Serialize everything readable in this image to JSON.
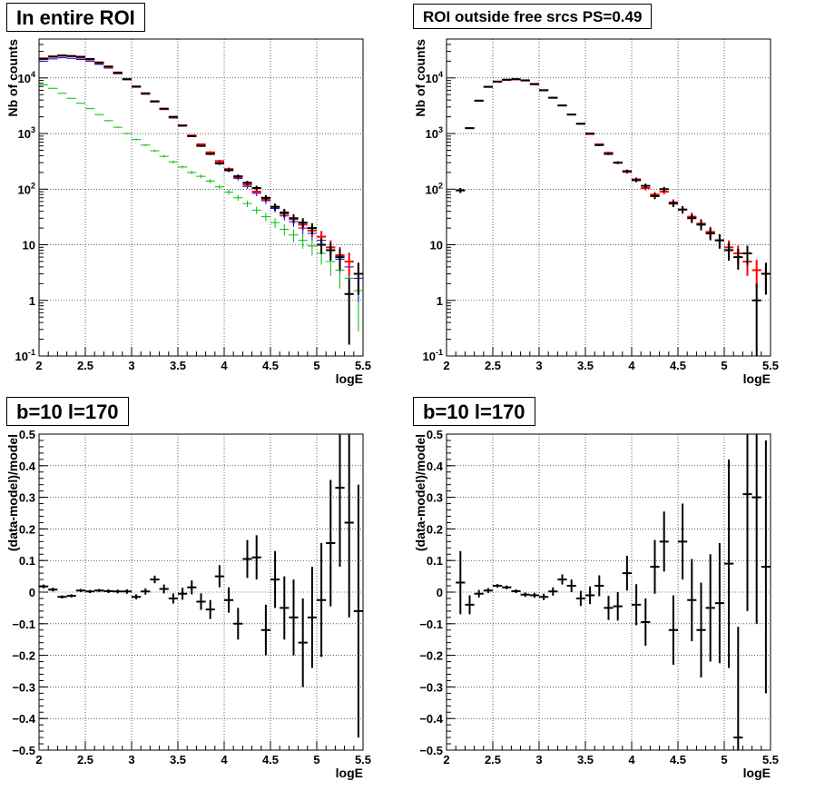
{
  "colors": {
    "data": "#000000",
    "model": "#ff0000",
    "component_blue": "#0000ff",
    "component_green": "#00c000",
    "grid": "#000000"
  },
  "panels": [
    {
      "title": "In entire ROI",
      "chart_data": {
        "type": "scatter",
        "yscale": "log",
        "xlabel": "logE",
        "ylabel": "Nb of counts",
        "xlim": [
          2,
          5.5
        ],
        "ylim": [
          0.1,
          50000
        ],
        "x_ticks": [
          "2",
          "2.5",
          "3",
          "3.5",
          "4",
          "4.5",
          "5",
          "5.5"
        ],
        "y_ticks": [
          "10^-1",
          "1",
          "10",
          "10^2",
          "10^3",
          "10^4"
        ],
        "grid": true,
        "x": [
          2.05,
          2.15,
          2.25,
          2.35,
          2.45,
          2.55,
          2.65,
          2.75,
          2.85,
          2.95,
          3.05,
          3.15,
          3.25,
          3.35,
          3.45,
          3.55,
          3.65,
          3.75,
          3.85,
          3.95,
          4.05,
          4.15,
          4.25,
          4.35,
          4.45,
          4.55,
          4.65,
          4.75,
          4.85,
          4.95,
          5.05,
          5.15,
          5.25,
          5.35,
          5.45
        ],
        "series": [
          {
            "role": "data",
            "values": [
              22000,
              24000,
              25000,
              24800,
              24000,
              22000,
              19000,
              16000,
              12500,
              9500,
              7000,
              5300,
              3800,
              2800,
              2000,
              1400,
              900,
              600,
              430,
              290,
              220,
              170,
              130,
              105,
              70,
              48,
              38,
              30,
              25,
              20,
              10,
              8,
              6,
              1.3,
              3
            ]
          },
          {
            "role": "model",
            "values": [
              22500,
              24500,
              25500,
              24500,
              23000,
              21500,
              18500,
              15500,
              12200,
              9400,
              6900,
              5200,
              3750,
              2750,
              1950,
              1380,
              920,
              640,
              460,
              320,
              230,
              165,
              120,
              90,
              66,
              48,
              36,
              29,
              23,
              18,
              14,
              9,
              6.5,
              5,
              3
            ]
          },
          {
            "role": "component_blue",
            "values": [
              20000,
              22000,
              23000,
              22500,
              21500,
              20000,
              17500,
              15000,
              11800,
              9200,
              6800,
              5100,
              3700,
              2700,
              1900,
              1350,
              900,
              620,
              440,
              300,
              215,
              155,
              112,
              84,
              62,
              45,
              33,
              26,
              20,
              16,
              12,
              8,
              5.5,
              4,
              2.5
            ]
          },
          {
            "role": "component_green",
            "values": [
              7500,
              6500,
              5300,
              4300,
              3500,
              2800,
              2200,
              1700,
              1300,
              1000,
              780,
              620,
              490,
              390,
              310,
              250,
              200,
              170,
              140,
              110,
              88,
              70,
              55,
              42,
              32,
              25,
              19,
              15,
              12,
              9.5,
              7,
              5,
              3.5,
              2.5,
              1.5
            ]
          }
        ]
      }
    },
    {
      "title": "ROI outside free srcs PS=0.49",
      "chart_data": {
        "type": "scatter",
        "yscale": "log",
        "xlabel": "logE",
        "ylabel": "Nb of counts",
        "xlim": [
          2,
          5.5
        ],
        "ylim": [
          0.1,
          50000
        ],
        "x_ticks": [
          "2",
          "2.5",
          "3",
          "3.5",
          "4",
          "4.5",
          "5",
          "5.5"
        ],
        "y_ticks": [
          "10^-1",
          "1",
          "10",
          "10^2",
          "10^3",
          "10^4"
        ],
        "grid": true,
        "x": [
          2.15,
          2.25,
          2.35,
          2.45,
          2.55,
          2.65,
          2.75,
          2.85,
          2.95,
          3.05,
          3.15,
          3.25,
          3.35,
          3.45,
          3.55,
          3.65,
          3.75,
          3.85,
          3.95,
          4.05,
          4.15,
          4.25,
          4.35,
          4.45,
          4.55,
          4.65,
          4.75,
          4.85,
          4.95,
          5.05,
          5.15,
          5.25,
          5.35,
          5.45
        ],
        "series": [
          {
            "role": "data",
            "values": [
              95,
              1250,
              3900,
              6900,
              8600,
              9300,
              9500,
              9000,
              7700,
              6000,
              4400,
              3200,
              2200,
              1500,
              1000,
              620,
              430,
              300,
              210,
              145,
              115,
              75,
              100,
              55,
              43,
              30,
              23,
              16,
              12,
              8,
              6,
              7,
              1,
              3
            ]
          },
          {
            "role": "model",
            "values": [
              95,
              1250,
              3900,
              6900,
              8600,
              9200,
              9400,
              9100,
              7800,
              6000,
              4400,
              3200,
              2200,
              1500,
              980,
              640,
              450,
              300,
              205,
              150,
              105,
              80,
              90,
              58,
              43,
              32,
              24,
              17,
              12,
              9,
              7,
              5,
              3.5,
              3
            ]
          }
        ]
      }
    },
    {
      "title": "b=10 l=170",
      "chart_data": {
        "type": "scatter",
        "xlabel": "logE",
        "ylabel": "(data-model)/model",
        "xlim": [
          2,
          5.5
        ],
        "ylim": [
          -0.5,
          0.5
        ],
        "x_ticks": [
          "2",
          "2.5",
          "3",
          "3.5",
          "4",
          "4.5",
          "5",
          "5.5"
        ],
        "y_ticks": [
          "-0.5",
          "-0.4",
          "-0.3",
          "-0.2",
          "-0.1",
          "0",
          "0.1",
          "0.2",
          "0.3",
          "0.4",
          "0.5"
        ],
        "grid": true,
        "x": [
          2.05,
          2.15,
          2.25,
          2.35,
          2.45,
          2.55,
          2.65,
          2.75,
          2.85,
          2.95,
          3.05,
          3.15,
          3.25,
          3.35,
          3.45,
          3.55,
          3.65,
          3.75,
          3.85,
          3.95,
          4.05,
          4.15,
          4.25,
          4.35,
          4.45,
          4.55,
          4.65,
          4.75,
          4.85,
          4.95,
          5.05,
          5.15,
          5.25,
          5.35,
          5.45
        ],
        "values": [
          0.018,
          0.008,
          -0.015,
          -0.012,
          0.005,
          0.002,
          0.005,
          0.003,
          0.002,
          0.002,
          -0.015,
          0.002,
          0.04,
          0.01,
          -0.02,
          -0.005,
          0.015,
          -0.03,
          -0.055,
          0.05,
          -0.025,
          -0.1,
          0.105,
          0.11,
          -0.12,
          0.04,
          -0.05,
          -0.08,
          -0.16,
          -0.08,
          -0.025,
          0.155,
          0.33,
          0.22,
          -0.06
        ],
        "errors": [
          0.006,
          0.006,
          0.005,
          0.005,
          0.005,
          0.005,
          0.005,
          0.006,
          0.006,
          0.007,
          0.008,
          0.01,
          0.012,
          0.014,
          0.016,
          0.019,
          0.022,
          0.026,
          0.03,
          0.035,
          0.04,
          0.05,
          0.06,
          0.07,
          0.08,
          0.09,
          0.1,
          0.12,
          0.14,
          0.16,
          0.18,
          0.2,
          0.25,
          0.3,
          0.4
        ]
      }
    },
    {
      "title": "b=10 l=170",
      "chart_data": {
        "type": "scatter",
        "xlabel": "logE",
        "ylabel": "(data-model)/model",
        "xlim": [
          2,
          5.5
        ],
        "ylim": [
          -0.5,
          0.5
        ],
        "x_ticks": [
          "2",
          "2.5",
          "3",
          "3.5",
          "4",
          "4.5",
          "5",
          "5.5"
        ],
        "y_ticks": [
          "-0.5",
          "-0.4",
          "-0.3",
          "-0.2",
          "-0.1",
          "0",
          "0.1",
          "0.2",
          "0.3",
          "0.4",
          "0.5"
        ],
        "grid": true,
        "x": [
          2.15,
          2.25,
          2.35,
          2.45,
          2.55,
          2.65,
          2.75,
          2.85,
          2.95,
          3.05,
          3.15,
          3.25,
          3.35,
          3.45,
          3.55,
          3.65,
          3.75,
          3.85,
          3.95,
          4.05,
          4.15,
          4.25,
          4.35,
          4.45,
          4.55,
          4.65,
          4.75,
          4.85,
          4.95,
          5.05,
          5.15,
          5.25,
          5.35,
          5.45
        ],
        "values": [
          0.03,
          -0.04,
          -0.005,
          0.005,
          0.02,
          0.015,
          0.003,
          -0.008,
          -0.01,
          -0.015,
          0.002,
          0.04,
          0.02,
          -0.02,
          -0.01,
          0.02,
          -0.05,
          -0.045,
          0.06,
          -0.04,
          -0.095,
          0.08,
          0.16,
          -0.12,
          0.16,
          -0.025,
          -0.12,
          -0.05,
          -0.035,
          0.09,
          -0.46,
          0.31,
          0.3,
          0.08
        ],
        "errors": [
          0.1,
          0.03,
          0.012,
          0.008,
          0.006,
          0.006,
          0.006,
          0.007,
          0.008,
          0.01,
          0.013,
          0.016,
          0.02,
          0.024,
          0.028,
          0.033,
          0.038,
          0.045,
          0.055,
          0.065,
          0.075,
          0.085,
          0.095,
          0.11,
          0.12,
          0.13,
          0.15,
          0.17,
          0.19,
          0.33,
          0.35,
          0.37,
          0.4,
          0.4
        ]
      }
    }
  ]
}
